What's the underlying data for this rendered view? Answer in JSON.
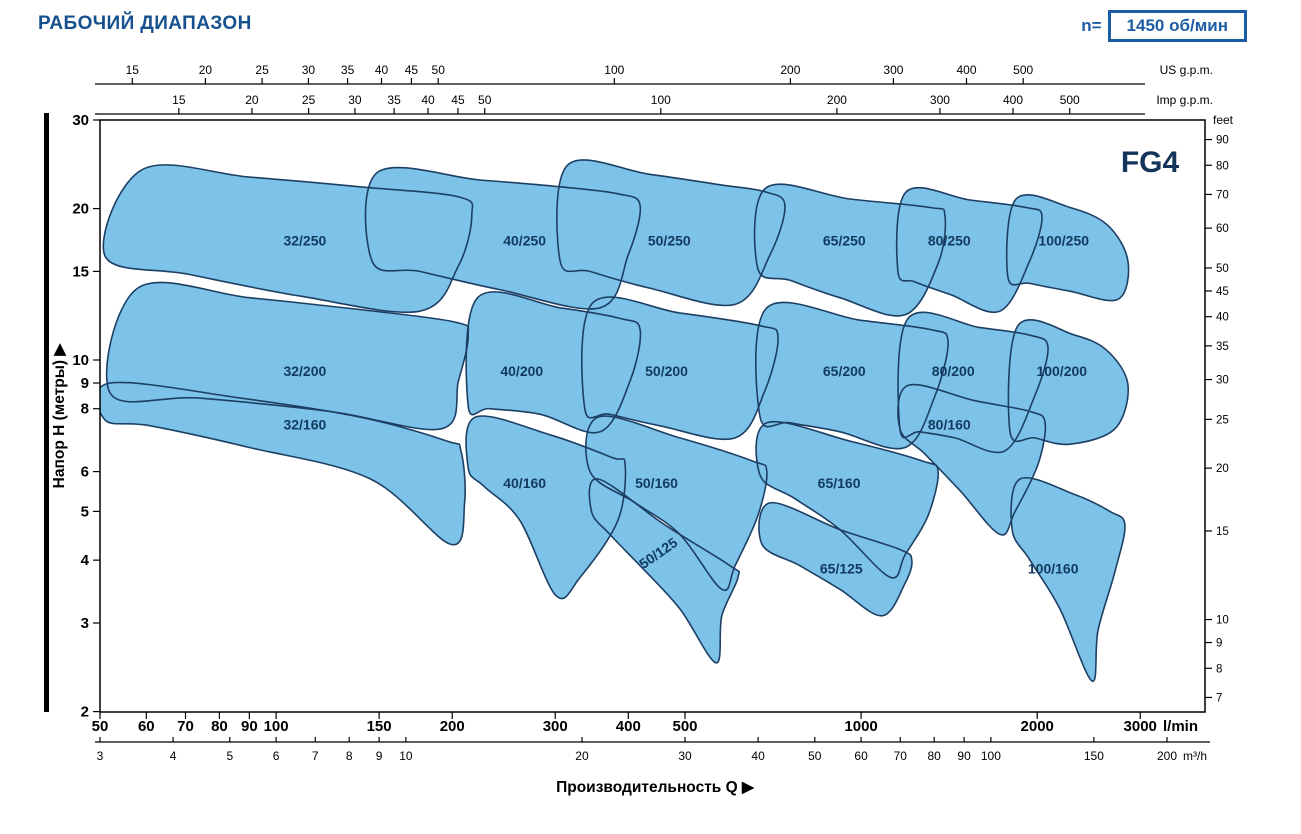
{
  "header": {
    "title": "РАБОЧИЙ ДИАПАЗОН",
    "speed_prefix": "n=",
    "speed_value": "1450 об/мин"
  },
  "colors": {
    "title": "#17508f",
    "accent": "#1c5ca3",
    "region_fill": "#7cc2e9",
    "region_stroke": "#1d3f63",
    "region_label": "#123a5e",
    "axis": "#000000"
  },
  "icons": {
    "axis_arrow": "▶"
  },
  "chart_data": {
    "type": "area",
    "title": "РАБОЧИЙ ДИАПАЗОН",
    "series_family": "FG4",
    "speed_label": "n= 1450 об/мин",
    "scale": "log-log",
    "x_range_lmin": [
      50,
      3000
    ],
    "y_range_m": [
      2,
      30
    ],
    "x_axis_label": "Производительность Q",
    "axes": {
      "top_us_gpm": {
        "unit": "US g.p.m.",
        "ticks": [
          15,
          20,
          25,
          30,
          35,
          40,
          45,
          50,
          100,
          200,
          300,
          400,
          500
        ]
      },
      "top_imp_gpm": {
        "unit": "Imp g.p.m.",
        "ticks": [
          15,
          20,
          25,
          30,
          35,
          40,
          45,
          50,
          100,
          200,
          300,
          400,
          500
        ]
      },
      "bottom_lmin": {
        "unit": "l/min",
        "ticks": [
          50,
          60,
          70,
          80,
          90,
          100,
          150,
          200,
          300,
          400,
          500,
          1000,
          2000,
          3000
        ]
      },
      "bottom_m3h": {
        "unit": "m³/h",
        "ticks": [
          3,
          4,
          5,
          6,
          7,
          8,
          9,
          10,
          20,
          30,
          40,
          50,
          60,
          70,
          80,
          90,
          100,
          150,
          200
        ]
      },
      "left_m": {
        "label": "Напор H (метры)",
        "ticks": [
          30,
          20,
          15,
          10,
          9,
          8,
          6,
          5,
          4,
          3,
          2
        ]
      },
      "right_feet": {
        "unit": "feet",
        "ticks": [
          90,
          80,
          70,
          60,
          50,
          45,
          40,
          35,
          30,
          25,
          20,
          15,
          10,
          9,
          8,
          7
        ]
      }
    },
    "regions": [
      {
        "label": "32/250",
        "label_at": [
          112,
          17.3
        ],
        "label_rotation": 0,
        "points": [
          [
            51,
            16.1
          ],
          [
            59,
            23.9
          ],
          [
            90,
            23.1
          ],
          [
            139,
            22.1
          ],
          [
            205,
            21.1
          ],
          [
            216,
            19.4
          ],
          [
            205,
            15.4
          ],
          [
            176,
            12.5
          ],
          [
            110,
            13.4
          ],
          [
            71,
            14.8
          ]
        ]
      },
      {
        "label": "40/250",
        "label_at": [
          266,
          17.3
        ],
        "label_rotation": 0,
        "points": [
          [
            146,
            15.7
          ],
          [
            149,
            23.6
          ],
          [
            223,
            22.8
          ],
          [
            306,
            22.1
          ],
          [
            384,
            21.4
          ],
          [
            419,
            20.3
          ],
          [
            400,
            16.2
          ],
          [
            358,
            12.7
          ],
          [
            241,
            13.8
          ],
          [
            176,
            15.0
          ]
        ]
      },
      {
        "label": "50/250",
        "label_at": [
          470,
          17.3
        ],
        "label_rotation": 0,
        "points": [
          [
            306,
            15.7
          ],
          [
            315,
            24.4
          ],
          [
            435,
            23.4
          ],
          [
            574,
            22.3
          ],
          [
            685,
            21.6
          ],
          [
            741,
            20.3
          ],
          [
            699,
            16.2
          ],
          [
            609,
            12.9
          ],
          [
            435,
            13.9
          ],
          [
            344,
            15.0
          ]
        ]
      },
      {
        "label": "65/250",
        "label_at": [
          936,
          17.3
        ],
        "label_rotation": 0,
        "points": [
          [
            666,
            15.2
          ],
          [
            688,
            22.0
          ],
          [
            957,
            20.9
          ],
          [
            1312,
            20.1
          ],
          [
            1391,
            19.4
          ],
          [
            1355,
            15.6
          ],
          [
            1189,
            12.3
          ],
          [
            920,
            13.3
          ],
          [
            756,
            14.4
          ]
        ]
      },
      {
        "label": "80/250",
        "label_at": [
          1415,
          17.3
        ],
        "label_rotation": 0,
        "points": [
          [
            1156,
            15.0
          ],
          [
            1194,
            21.6
          ],
          [
            1535,
            20.8
          ],
          [
            1914,
            20.1
          ],
          [
            2038,
            19.3
          ],
          [
            1944,
            15.8
          ],
          [
            1727,
            12.5
          ],
          [
            1419,
            13.5
          ],
          [
            1236,
            14.3
          ]
        ]
      },
      {
        "label": "100/250",
        "label_at": [
          2220,
          17.3
        ],
        "label_rotation": 0,
        "points": [
          [
            1782,
            14.6
          ],
          [
            1840,
            20.9
          ],
          [
            2276,
            20.1
          ],
          [
            2643,
            18.5
          ],
          [
            2859,
            15.7
          ],
          [
            2749,
            13.2
          ],
          [
            2276,
            13.7
          ],
          [
            1944,
            14.2
          ]
        ]
      },
      {
        "label": "32/200",
        "label_at": [
          112,
          9.5
        ],
        "label_rotation": 0,
        "points": [
          [
            52,
            8.6
          ],
          [
            58,
            13.9
          ],
          [
            90,
            13.3
          ],
          [
            139,
            12.6
          ],
          [
            202,
            11.9
          ],
          [
            213,
            11.2
          ],
          [
            205,
            9.1
          ],
          [
            192,
            7.3
          ],
          [
            124,
            7.9
          ],
          [
            74,
            8.4
          ]
        ]
      },
      {
        "label": "40/200",
        "label_at": [
          263,
          9.5
        ],
        "label_rotation": 0,
        "points": [
          [
            213,
            8.1
          ],
          [
            221,
            13.3
          ],
          [
            306,
            12.7
          ],
          [
            387,
            12.1
          ],
          [
            419,
            11.5
          ],
          [
            403,
            9.1
          ],
          [
            358,
            7.2
          ],
          [
            283,
            7.8
          ],
          [
            232,
            8.0
          ]
        ]
      },
      {
        "label": "50/200",
        "label_at": [
          465,
          9.5
        ],
        "label_rotation": 0,
        "points": [
          [
            337,
            8.0
          ],
          [
            348,
            13.0
          ],
          [
            490,
            12.4
          ],
          [
            672,
            11.7
          ],
          [
            721,
            11.1
          ],
          [
            685,
            8.7
          ],
          [
            609,
            7.0
          ],
          [
            453,
            7.4
          ],
          [
            372,
            7.8
          ]
        ]
      },
      {
        "label": "65/200",
        "label_at": [
          936,
          9.5
        ],
        "label_rotation": 0,
        "points": [
          [
            672,
            7.7
          ],
          [
            690,
            12.7
          ],
          [
            996,
            12.0
          ],
          [
            1312,
            11.5
          ],
          [
            1408,
            10.9
          ],
          [
            1338,
            8.5
          ],
          [
            1189,
            6.7
          ],
          [
            920,
            7.2
          ],
          [
            756,
            7.5
          ]
        ]
      },
      {
        "label": "80/200",
        "label_at": [
          1437,
          9.5
        ],
        "label_rotation": 0,
        "points": [
          [
            1165,
            7.3
          ],
          [
            1203,
            12.1
          ],
          [
            1597,
            11.6
          ],
          [
            1944,
            11.2
          ],
          [
            2087,
            10.6
          ],
          [
            1982,
            8.5
          ],
          [
            1762,
            6.6
          ],
          [
            1447,
            7.0
          ],
          [
            1261,
            7.2
          ]
        ]
      },
      {
        "label": "100/200",
        "label_at": [
          2203,
          9.5
        ],
        "label_rotation": 0,
        "points": [
          [
            1797,
            7.2
          ],
          [
            1854,
            11.7
          ],
          [
            2321,
            11.2
          ],
          [
            2643,
            10.4
          ],
          [
            2859,
            8.9
          ],
          [
            2717,
            7.3
          ],
          [
            2276,
            6.8
          ],
          [
            1982,
            7.0
          ]
        ]
      },
      {
        "label": "32/160",
        "label_at": [
          112,
          7.45
        ],
        "label_rotation": 0,
        "points": [
          [
            51,
            7.6
          ],
          [
            52,
            9.0
          ],
          [
            87,
            8.4
          ],
          [
            139,
            7.7
          ],
          [
            196,
            6.9
          ],
          [
            207,
            6.6
          ],
          [
            210,
            5.2
          ],
          [
            199,
            4.3
          ],
          [
            145,
            5.8
          ],
          [
            90,
            6.7
          ],
          [
            61,
            7.4
          ]
        ]
      },
      {
        "label": "40/160",
        "label_at": [
          266,
          5.7
        ],
        "label_rotation": 0,
        "points": [
          [
            213,
            6.1
          ],
          [
            219,
            7.7
          ],
          [
            294,
            7.1
          ],
          [
            375,
            6.4
          ],
          [
            395,
            6.2
          ],
          [
            384,
            4.8
          ],
          [
            331,
            3.7
          ],
          [
            301,
            3.4
          ],
          [
            261,
            4.8
          ],
          [
            227,
            5.6
          ]
        ]
      },
      {
        "label": "50/160",
        "label_at": [
          447,
          5.7
        ],
        "label_rotation": 0,
        "points": [
          [
            344,
            6.0
          ],
          [
            355,
            7.7
          ],
          [
            490,
            7.0
          ],
          [
            651,
            6.3
          ],
          [
            690,
            6.0
          ],
          [
            666,
            4.9
          ],
          [
            609,
            3.9
          ],
          [
            578,
            3.5
          ],
          [
            490,
            4.5
          ],
          [
            411,
            5.2
          ]
        ]
      },
      {
        "label": "65/160",
        "label_at": [
          917,
          5.7
        ],
        "label_rotation": 0,
        "points": [
          [
            672,
            5.9
          ],
          [
            690,
            7.5
          ],
          [
            957,
            6.9
          ],
          [
            1271,
            6.3
          ],
          [
            1354,
            6.0
          ],
          [
            1301,
            4.9
          ],
          [
            1189,
            4.1
          ],
          [
            1121,
            3.7
          ],
          [
            920,
            4.6
          ],
          [
            771,
            5.3
          ]
        ]
      },
      {
        "label": "80/160",
        "label_at": [
          1415,
          7.45
        ],
        "label_rotation": 0,
        "points": [
          [
            1165,
            7.3
          ],
          [
            1203,
            8.9
          ],
          [
            1566,
            8.3
          ],
          [
            1944,
            7.9
          ],
          [
            2063,
            7.5
          ],
          [
            2006,
            6.2
          ],
          [
            1833,
            5.0
          ],
          [
            1727,
            4.5
          ],
          [
            1476,
            5.5
          ],
          [
            1286,
            6.5
          ]
        ]
      },
      {
        "label": "100/160",
        "label_at": [
          2130,
          3.85
        ],
        "label_rotation": 0,
        "points": [
          [
            1812,
            4.6
          ],
          [
            1869,
            5.8
          ],
          [
            2321,
            5.4
          ],
          [
            2663,
            5.0
          ],
          [
            2825,
            4.7
          ],
          [
            2717,
            3.8
          ],
          [
            2541,
            2.9
          ],
          [
            2481,
            2.3
          ],
          [
            2187,
            3.2
          ],
          [
            1944,
            4.0
          ]
        ]
      },
      {
        "label": "50/125",
        "label_at": [
          455,
          4.15
        ],
        "label_rotation": -35,
        "points": [
          [
            346,
            5.0
          ],
          [
            355,
            5.8
          ],
          [
            462,
            4.7
          ],
          [
            597,
            3.9
          ],
          [
            616,
            3.7
          ],
          [
            578,
            3.1
          ],
          [
            565,
            2.5
          ],
          [
            490,
            3.2
          ],
          [
            419,
            3.9
          ],
          [
            372,
            4.5
          ]
        ]
      },
      {
        "label": "65/125",
        "label_at": [
          925,
          3.85
        ],
        "label_rotation": 0,
        "points": [
          [
            677,
            4.3
          ],
          [
            699,
            5.2
          ],
          [
            920,
            4.6
          ],
          [
            1165,
            4.2
          ],
          [
            1221,
            4.0
          ],
          [
            1189,
            3.6
          ],
          [
            1086,
            3.1
          ],
          [
            920,
            3.5
          ],
          [
            786,
            3.9
          ]
        ]
      }
    ]
  }
}
